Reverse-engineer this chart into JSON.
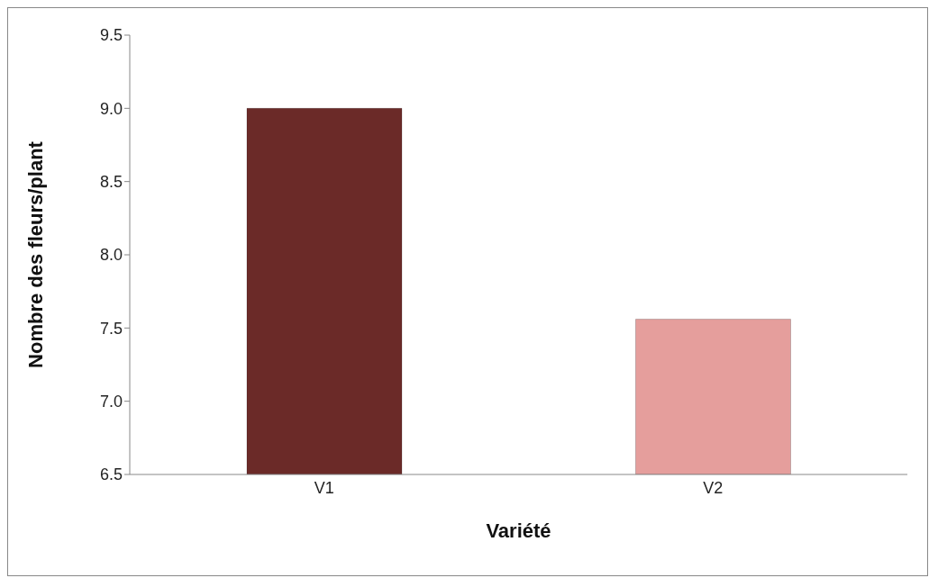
{
  "chart_data": {
    "type": "bar",
    "categories": [
      "V1",
      "V2"
    ],
    "values": [
      9.0,
      7.56
    ],
    "colors": [
      "#6b2a28",
      "#e59e9c"
    ],
    "xlabel": "Variété",
    "ylabel": "Nombre des fleurs/plant",
    "ylim": [
      6.5,
      9.5
    ],
    "yticks": [
      6.5,
      {
        "value": 7,
        "label": "7.0"
      },
      7.5,
      {
        "value": 8,
        "label": "8.0"
      },
      8.5,
      {
        "value": 9,
        "label": "9.0"
      },
      9.5
    ],
    "grid": false,
    "legend": false
  }
}
